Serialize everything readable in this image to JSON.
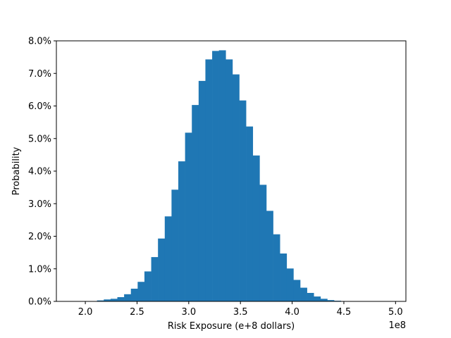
{
  "chart_data": {
    "type": "bar",
    "title": "",
    "xlabel": "Risk Exposure (e+8 dollars)",
    "ylabel": "Probability",
    "x_offset_label": "1e8",
    "xlim": [
      1.72,
      5.1
    ],
    "ylim": [
      0,
      0.08
    ],
    "x_ticks": [
      2.0,
      2.5,
      3.0,
      3.5,
      4.0,
      4.5,
      5.0
    ],
    "x_tick_labels": [
      "2.0",
      "2.5",
      "3.0",
      "3.5",
      "4.0",
      "4.5",
      "5.0"
    ],
    "y_ticks": [
      0,
      0.01,
      0.02,
      0.03,
      0.04,
      0.05,
      0.06,
      0.07,
      0.08
    ],
    "y_tick_labels": [
      "0.0%",
      "1.0%",
      "2.0%",
      "3.0%",
      "4.0%",
      "5.0%",
      "6.0%",
      "7.0%",
      "8.0%"
    ],
    "bar_color": "#1f77b4",
    "grid": false,
    "legend": "none",
    "bin_edges": [
      1.72,
      1.7855,
      1.851,
      1.9165,
      1.982,
      2.0475,
      2.113,
      2.1785,
      2.244,
      2.3095,
      2.375,
      2.4405,
      2.506,
      2.5715,
      2.637,
      2.7025,
      2.768,
      2.8335,
      2.899,
      2.9645,
      3.03,
      3.0955,
      3.161,
      3.2265,
      3.292,
      3.3575,
      3.423,
      3.4885,
      3.554,
      3.6195,
      3.685,
      3.7505,
      3.816,
      3.8815,
      3.947,
      4.0125,
      4.078,
      4.1435,
      4.209,
      4.2745,
      4.34,
      4.4055,
      4.471,
      4.5365,
      4.602,
      4.6675,
      4.733,
      4.7985,
      4.864,
      4.9295,
      4.995
    ],
    "values": [
      0.0,
      0.0,
      0.0,
      0.0,
      0.0,
      0.0,
      0.0003,
      0.0006,
      0.0008,
      0.0013,
      0.0022,
      0.0039,
      0.006,
      0.0092,
      0.0136,
      0.0193,
      0.0261,
      0.0343,
      0.043,
      0.0518,
      0.0603,
      0.0677,
      0.0743,
      0.0769,
      0.0771,
      0.0743,
      0.0697,
      0.0617,
      0.0537,
      0.0448,
      0.0358,
      0.0278,
      0.0206,
      0.0147,
      0.0101,
      0.0066,
      0.0042,
      0.0026,
      0.0015,
      0.0008,
      0.0004,
      0.0002,
      0.0,
      0.0,
      0.0,
      0.0,
      0.0,
      0.0,
      0.0,
      0.0
    ]
  }
}
